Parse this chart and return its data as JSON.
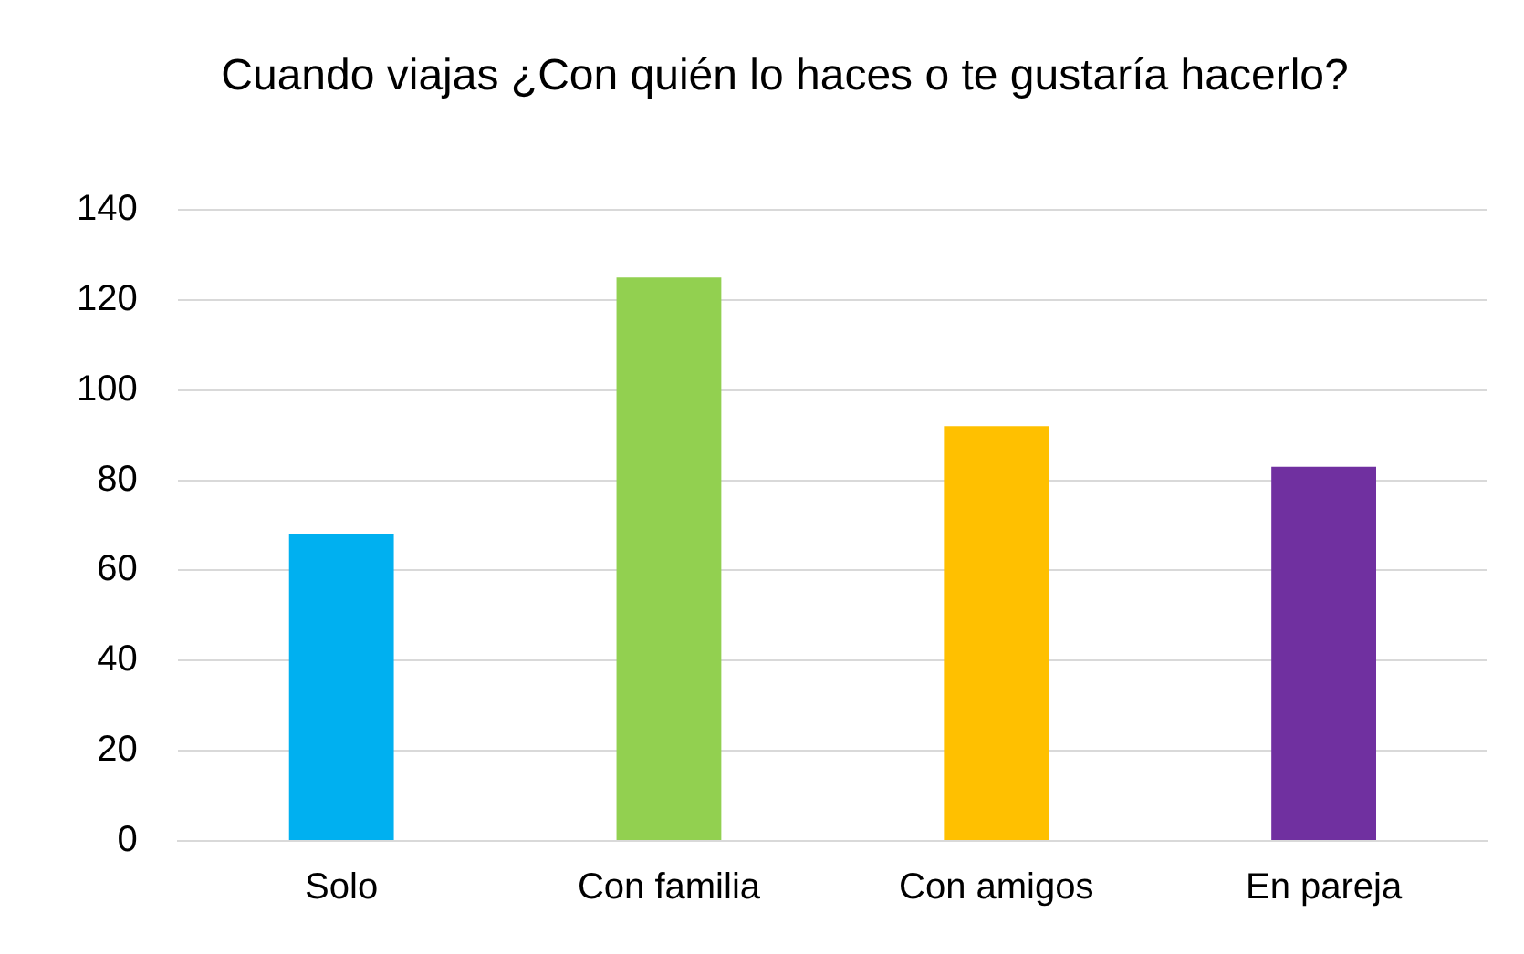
{
  "chart_data": {
    "type": "bar",
    "title": "Cuando viajas ¿Con quién lo haces o te gustaría hacerlo?",
    "categories": [
      "Solo",
      "Con familia",
      "Con amigos",
      "En pareja"
    ],
    "values": [
      68,
      125,
      92,
      83
    ],
    "colors": [
      "#00b0f0",
      "#92d050",
      "#ffc000",
      "#7030a0"
    ],
    "ylim": [
      0,
      140
    ],
    "yticks": [
      0,
      20,
      40,
      60,
      80,
      100,
      120,
      140
    ],
    "grid": "y",
    "legend": false
  }
}
